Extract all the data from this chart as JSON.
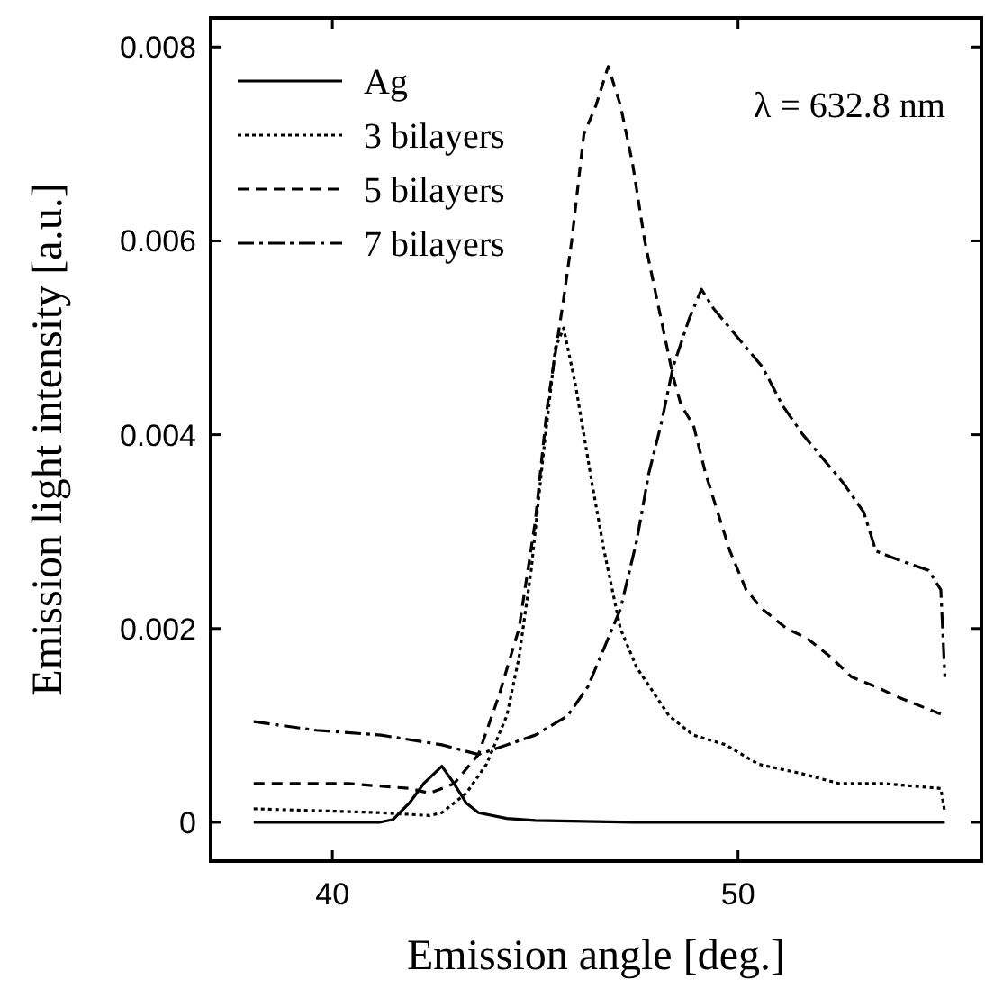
{
  "chart_data": {
    "type": "line",
    "xlabel": "Emission angle [deg.]",
    "ylabel": "Emission light intensity [a.u.]",
    "xlim": [
      37,
      56
    ],
    "ylim": [
      -0.0004,
      0.0083
    ],
    "xticks": [
      40,
      50
    ],
    "yticks": [
      0,
      0.002,
      0.004,
      0.006,
      0.008
    ],
    "grid": false,
    "legend": "top left",
    "annotations": [
      "λ = 632.8 nm"
    ],
    "series": [
      {
        "name": "Ag",
        "color": "#000000",
        "line_style": "solid",
        "x": [
          38.06,
          41.16,
          41.5,
          41.9,
          42.25,
          42.7,
          43.0,
          43.3,
          43.6,
          44.3,
          45.0,
          47.4,
          55.1
        ],
        "values": [
          0,
          0,
          3e-05,
          0.0002,
          0.0004,
          0.00058,
          0.0004,
          0.0002,
          0.0001,
          4e-05,
          2e-05,
          0,
          0
        ]
      },
      {
        "name": "3 bilayers",
        "color": "#000000",
        "line_style": "dotted",
        "x": [
          38.06,
          41.2,
          42.4,
          42.7,
          43.3,
          43.8,
          44.3,
          44.6,
          44.9,
          45.2,
          45.5,
          45.7,
          46.0,
          46.4,
          46.7,
          47.1,
          47.5,
          48.3,
          48.9,
          49.7,
          50.5,
          51.6,
          52.5,
          53.6,
          55.0,
          55.1
        ],
        "values": [
          0.00014,
          0.0001,
          7e-05,
          0.0001,
          0.0003,
          0.0006,
          0.0011,
          0.0017,
          0.0026,
          0.0038,
          0.0049,
          0.0051,
          0.0045,
          0.0035,
          0.0028,
          0.002,
          0.0016,
          0.0011,
          0.0009,
          0.0008,
          0.0006,
          0.0005,
          0.0004,
          0.0004,
          0.00035,
          0.0001
        ]
      },
      {
        "name": "5 bilayers",
        "color": "#000000",
        "line_style": "dashed",
        "x": [
          38.06,
          40.4,
          41.9,
          42.4,
          43.0,
          43.6,
          44.1,
          44.6,
          45.0,
          45.3,
          45.7,
          45.9,
          46.2,
          46.5,
          46.8,
          47.1,
          47.4,
          47.7,
          47.8,
          48.1,
          48.4,
          48.6,
          48.9,
          49.2,
          49.5,
          49.8,
          50.2,
          50.6,
          51.2,
          51.7,
          52.3,
          52.8,
          53.4,
          53.9,
          54.5,
          55.1
        ],
        "values": [
          0.0004,
          0.0004,
          0.00035,
          0.0003,
          0.0004,
          0.0007,
          0.0013,
          0.002,
          0.0031,
          0.0043,
          0.0054,
          0.006,
          0.0071,
          0.0074,
          0.0078,
          0.0074,
          0.0068,
          0.006,
          0.0058,
          0.0052,
          0.0046,
          0.0043,
          0.0041,
          0.0036,
          0.0032,
          0.0028,
          0.0024,
          0.0022,
          0.002,
          0.0019,
          0.0017,
          0.0015,
          0.0014,
          0.0013,
          0.0012,
          0.0011
        ]
      },
      {
        "name": "7 bilayers",
        "color": "#000000",
        "line_style": "dashdot",
        "x": [
          38.06,
          39.6,
          41.2,
          42.7,
          43.6,
          44.3,
          45.0,
          45.8,
          46.3,
          46.7,
          47.1,
          47.5,
          47.8,
          48.1,
          48.4,
          48.8,
          49.1,
          49.4,
          49.8,
          50.2,
          50.6,
          51.1,
          51.6,
          52.0,
          52.6,
          53.1,
          53.4,
          54.0,
          54.7,
          55.0,
          55.1
        ],
        "values": [
          0.00104,
          0.00095,
          0.0009,
          0.0008,
          0.0007,
          0.0008,
          0.0009,
          0.0011,
          0.0014,
          0.0018,
          0.0022,
          0.0029,
          0.0036,
          0.0041,
          0.0047,
          0.0052,
          0.0055,
          0.0053,
          0.0051,
          0.0049,
          0.0047,
          0.0043,
          0.004,
          0.0038,
          0.0035,
          0.0032,
          0.0028,
          0.0027,
          0.0026,
          0.0024,
          0.0015
        ]
      }
    ]
  }
}
